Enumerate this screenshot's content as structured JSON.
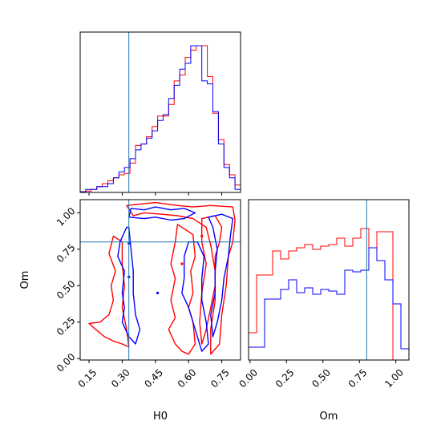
{
  "chart_data": {
    "type": "corner",
    "colors": {
      "series_a": "#ff0000",
      "series_b": "#0000ff",
      "truth": "#1f77b4"
    },
    "truth": {
      "H0": 0.33,
      "Om": 0.8
    },
    "axes": {
      "H0": {
        "label": "H0",
        "range": [
          0.11,
          0.835
        ],
        "ticks": [
          "0.15",
          "0.30",
          "0.45",
          "0.60",
          "0.75"
        ]
      },
      "Om": {
        "label": "Om",
        "range": [
          -0.01,
          1.09
        ],
        "ticks": [
          "0.00",
          "0.25",
          "0.50",
          "0.75",
          "1.00"
        ]
      }
    },
    "hist_H0": {
      "x": [
        0.11,
        0.135,
        0.16,
        0.185,
        0.21,
        0.235,
        0.26,
        0.285,
        0.31,
        0.335,
        0.36,
        0.385,
        0.41,
        0.435,
        0.46,
        0.485,
        0.51,
        0.535,
        0.56,
        0.585,
        0.61,
        0.635,
        0.66,
        0.685,
        0.71,
        0.735,
        0.76,
        0.785,
        0.81,
        0.835
      ],
      "series": [
        {
          "values": [
            0.005,
            0.01,
            0.02,
            0.04,
            0.06,
            0.08,
            0.1,
            0.12,
            0.13,
            0.2,
            0.32,
            0.33,
            0.38,
            0.45,
            0.52,
            0.52,
            0.6,
            0.76,
            0.8,
            0.92,
            0.97,
            1.0,
            1.0,
            0.79,
            0.54,
            0.36,
            0.19,
            0.12,
            0.05
          ]
        },
        {
          "values": [
            0.005,
            0.02,
            0.02,
            0.04,
            0.04,
            0.06,
            0.1,
            0.14,
            0.17,
            0.23,
            0.29,
            0.33,
            0.37,
            0.42,
            0.49,
            0.53,
            0.64,
            0.73,
            0.84,
            0.88,
            1.0,
            1.0,
            0.76,
            0.74,
            0.55,
            0.33,
            0.17,
            0.1,
            0.02
          ]
        }
      ]
    },
    "hist_Om": {
      "x": [
        -0.01,
        0.045,
        0.1,
        0.155,
        0.21,
        0.265,
        0.32,
        0.375,
        0.43,
        0.485,
        0.54,
        0.595,
        0.65,
        0.705,
        0.76,
        0.815,
        0.87,
        0.925,
        0.98,
        1.035,
        1.09
      ],
      "series": [
        {
          "values": [
            0.17,
            0.53,
            0.53,
            0.68,
            0.63,
            0.68,
            0.7,
            0.72,
            0.69,
            0.71,
            0.72,
            0.76,
            0.71,
            0.76,
            0.82,
            0.7,
            0.8,
            0.8,
            0.0,
            0.0
          ]
        },
        {
          "values": [
            0.08,
            0.08,
            0.38,
            0.38,
            0.44,
            0.5,
            0.42,
            0.45,
            0.41,
            0.44,
            0.43,
            0.41,
            0.56,
            0.55,
            0.56,
            0.7,
            0.62,
            0.5,
            0.35,
            0.07
          ]
        }
      ]
    },
    "contours": [
      {
        "series": 0,
        "points": [
          [
            0.32,
            1.05
          ],
          [
            0.45,
            1.07
          ],
          [
            0.55,
            1.05
          ],
          [
            0.62,
            1.04
          ],
          [
            0.7,
            1.05
          ],
          [
            0.8,
            1.04
          ],
          [
            0.81,
            0.95
          ],
          [
            0.8,
            0.8
          ],
          [
            0.78,
            0.7
          ],
          [
            0.77,
            0.5
          ],
          [
            0.75,
            0.3
          ],
          [
            0.74,
            0.1
          ],
          [
            0.7,
            0.03
          ],
          [
            0.7,
            0.2
          ],
          [
            0.72,
            0.4
          ],
          [
            0.72,
            0.6
          ],
          [
            0.7,
            0.78
          ],
          [
            0.68,
            0.9
          ],
          [
            0.62,
            0.96
          ],
          [
            0.55,
            0.98
          ],
          [
            0.48,
            0.99
          ],
          [
            0.4,
            1.0
          ],
          [
            0.35,
            0.98
          ],
          [
            0.32,
            1.05
          ]
        ]
      },
      {
        "series": 0,
        "points": [
          [
            0.26,
            0.84
          ],
          [
            0.24,
            0.72
          ],
          [
            0.27,
            0.6
          ],
          [
            0.25,
            0.5
          ],
          [
            0.26,
            0.4
          ],
          [
            0.24,
            0.3
          ],
          [
            0.2,
            0.25
          ],
          [
            0.15,
            0.24
          ],
          [
            0.18,
            0.2
          ],
          [
            0.22,
            0.15
          ],
          [
            0.26,
            0.12
          ],
          [
            0.3,
            0.1
          ],
          [
            0.33,
            0.08
          ],
          [
            0.32,
            0.2
          ],
          [
            0.3,
            0.35
          ],
          [
            0.31,
            0.5
          ],
          [
            0.3,
            0.65
          ],
          [
            0.3,
            0.8
          ],
          [
            0.26,
            0.84
          ]
        ]
      },
      {
        "series": 0,
        "points": [
          [
            0.55,
            0.92
          ],
          [
            0.54,
            0.8
          ],
          [
            0.52,
            0.65
          ],
          [
            0.54,
            0.55
          ],
          [
            0.52,
            0.4
          ],
          [
            0.54,
            0.28
          ],
          [
            0.51,
            0.2
          ],
          [
            0.54,
            0.1
          ],
          [
            0.57,
            0.05
          ],
          [
            0.6,
            0.03
          ],
          [
            0.63,
            0.1
          ],
          [
            0.62,
            0.25
          ],
          [
            0.6,
            0.35
          ],
          [
            0.62,
            0.45
          ],
          [
            0.61,
            0.6
          ],
          [
            0.63,
            0.7
          ],
          [
            0.62,
            0.85
          ],
          [
            0.55,
            0.92
          ]
        ]
      },
      {
        "series": 0,
        "points": [
          [
            0.66,
            0.96
          ],
          [
            0.72,
            0.98
          ],
          [
            0.75,
            0.9
          ],
          [
            0.74,
            0.8
          ],
          [
            0.72,
            0.7
          ],
          [
            0.72,
            0.5
          ],
          [
            0.7,
            0.35
          ],
          [
            0.68,
            0.2
          ],
          [
            0.66,
            0.1
          ],
          [
            0.65,
            0.25
          ],
          [
            0.66,
            0.45
          ],
          [
            0.68,
            0.65
          ],
          [
            0.66,
            0.8
          ],
          [
            0.66,
            0.96
          ]
        ]
      },
      {
        "series": 1,
        "points": [
          [
            0.33,
            0.97
          ],
          [
            0.34,
            1.03
          ],
          [
            0.4,
            1.02
          ],
          [
            0.45,
            1.04
          ],
          [
            0.52,
            1.02
          ],
          [
            0.58,
            1.03
          ],
          [
            0.63,
            1.0
          ],
          [
            0.58,
            0.96
          ],
          [
            0.52,
            0.95
          ],
          [
            0.45,
            0.97
          ],
          [
            0.4,
            0.96
          ],
          [
            0.33,
            0.97
          ]
        ]
      },
      {
        "series": 1,
        "points": [
          [
            0.32,
            0.9
          ],
          [
            0.29,
            0.8
          ],
          [
            0.28,
            0.7
          ],
          [
            0.31,
            0.6
          ],
          [
            0.3,
            0.45
          ],
          [
            0.31,
            0.35
          ],
          [
            0.3,
            0.25
          ],
          [
            0.33,
            0.15
          ],
          [
            0.36,
            0.1
          ],
          [
            0.38,
            0.2
          ],
          [
            0.36,
            0.3
          ],
          [
            0.35,
            0.45
          ],
          [
            0.35,
            0.6
          ],
          [
            0.34,
            0.75
          ],
          [
            0.33,
            0.9
          ],
          [
            0.32,
            0.9
          ]
        ]
      },
      {
        "series": 1,
        "points": [
          [
            0.6,
            0.8
          ],
          [
            0.58,
            0.7
          ],
          [
            0.58,
            0.55
          ],
          [
            0.57,
            0.45
          ],
          [
            0.6,
            0.35
          ],
          [
            0.62,
            0.25
          ],
          [
            0.64,
            0.15
          ],
          [
            0.66,
            0.05
          ],
          [
            0.69,
            0.1
          ],
          [
            0.68,
            0.25
          ],
          [
            0.66,
            0.4
          ],
          [
            0.66,
            0.55
          ],
          [
            0.67,
            0.7
          ],
          [
            0.64,
            0.8
          ],
          [
            0.6,
            0.8
          ]
        ]
      },
      {
        "series": 1,
        "points": [
          [
            0.69,
            0.97
          ],
          [
            0.75,
            0.99
          ],
          [
            0.8,
            0.96
          ],
          [
            0.79,
            0.85
          ],
          [
            0.78,
            0.7
          ],
          [
            0.76,
            0.55
          ],
          [
            0.75,
            0.4
          ],
          [
            0.73,
            0.25
          ],
          [
            0.71,
            0.15
          ],
          [
            0.7,
            0.3
          ],
          [
            0.72,
            0.45
          ],
          [
            0.72,
            0.6
          ],
          [
            0.73,
            0.75
          ],
          [
            0.71,
            0.9
          ],
          [
            0.69,
            0.97
          ]
        ]
      }
    ],
    "blobs": [
      {
        "series": 1,
        "x": 0.46,
        "y": 0.45
      },
      {
        "series": 1,
        "x": 0.33,
        "y": 0.56
      },
      {
        "series": 1,
        "x": 0.33,
        "y": 0.79
      },
      {
        "series": 0,
        "x": 0.66,
        "y": 0.84
      },
      {
        "series": 0,
        "x": 0.57,
        "y": 0.65
      }
    ]
  }
}
